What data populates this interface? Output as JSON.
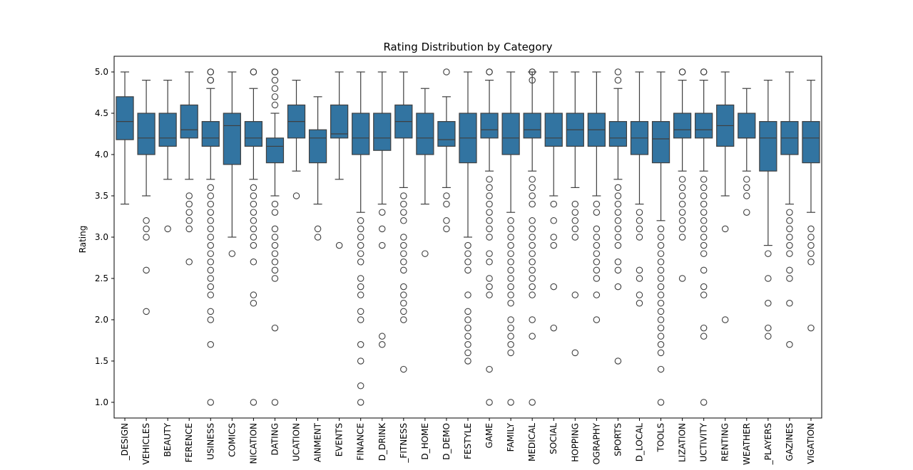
{
  "chart_data": {
    "type": "box",
    "title": "Rating Distribution by Category",
    "xlabel": "",
    "ylabel": "Rating",
    "ylim": [
      0.81,
      5.19
    ],
    "yticks": [
      "1.0",
      "1.5",
      "2.0",
      "2.5",
      "3.0",
      "3.5",
      "4.0",
      "4.5",
      "5.0"
    ],
    "box_color": "#3274a1",
    "line_color": "#3f3f3f",
    "grid": false,
    "categories": [
      "_DESIGN",
      "VEHICLES",
      "BEAUTY",
      "FERENCE",
      "USINESS",
      "COMICS",
      "NICATION",
      "DATING",
      "UCATION",
      "AINMENT",
      "EVENTS",
      "FINANCE",
      "D_DRINK",
      "_FITNESS",
      "D_HOME",
      "D_DEMO",
      "FESTYLE",
      "GAME",
      "FAMILY",
      "MEDICAL",
      "SOCIAL",
      "HOPPING",
      "OGRAPHY",
      "SPORTS",
      "D_LOCAL",
      "TOOLS",
      "LIZATION",
      "UCTIVITY",
      "RENTING",
      "WEATHER",
      "_PLAYERS",
      "GAZINES",
      "VIGATION"
    ],
    "boxes": [
      {
        "whislo": 3.4,
        "q1": 4.18,
        "med": 4.4,
        "q3": 4.7,
        "whishi": 5.0,
        "fliers": []
      },
      {
        "whislo": 3.5,
        "q1": 4.0,
        "med": 4.2,
        "q3": 4.5,
        "whishi": 4.9,
        "fliers": [
          3.2,
          3.1,
          3.0,
          2.6,
          2.1
        ]
      },
      {
        "whislo": 3.7,
        "q1": 4.1,
        "med": 4.2,
        "q3": 4.5,
        "whishi": 4.9,
        "fliers": [
          3.1
        ]
      },
      {
        "whislo": 3.7,
        "q1": 4.2,
        "med": 4.3,
        "q3": 4.6,
        "whishi": 5.0,
        "fliers": [
          3.5,
          3.4,
          3.3,
          3.2,
          3.1,
          2.7
        ]
      },
      {
        "whislo": 3.7,
        "q1": 4.1,
        "med": 4.2,
        "q3": 4.4,
        "whishi": 4.8,
        "fliers": [
          5.0,
          5.0,
          4.9,
          4.9,
          3.6,
          3.5,
          3.4,
          3.3,
          3.2,
          3.1,
          3.0,
          2.9,
          2.8,
          2.7,
          2.6,
          2.5,
          2.4,
          2.3,
          2.1,
          2.0,
          1.7,
          1.0
        ]
      },
      {
        "whislo": 3.0,
        "q1": 3.88,
        "med": 4.35,
        "q3": 4.5,
        "whishi": 5.0,
        "fliers": [
          2.8
        ]
      },
      {
        "whislo": 3.7,
        "q1": 4.1,
        "med": 4.2,
        "q3": 4.4,
        "whishi": 4.8,
        "fliers": [
          5.0,
          5.0,
          3.6,
          3.5,
          3.4,
          3.3,
          3.2,
          3.1,
          3.0,
          2.9,
          2.7,
          2.3,
          2.2,
          1.0
        ]
      },
      {
        "whislo": 3.5,
        "q1": 3.9,
        "med": 4.1,
        "q3": 4.2,
        "whishi": 4.5,
        "fliers": [
          5.0,
          5.0,
          4.9,
          4.8,
          4.7,
          4.6,
          3.4,
          3.3,
          3.1,
          3.0,
          2.9,
          2.8,
          2.7,
          2.6,
          2.5,
          1.9,
          1.0
        ]
      },
      {
        "whislo": 3.8,
        "q1": 4.2,
        "med": 4.4,
        "q3": 4.6,
        "whishi": 4.9,
        "fliers": [
          3.5
        ]
      },
      {
        "whislo": 3.4,
        "q1": 3.9,
        "med": 4.2,
        "q3": 4.3,
        "whishi": 4.7,
        "fliers": [
          3.1,
          3.0
        ]
      },
      {
        "whislo": 3.7,
        "q1": 4.2,
        "med": 4.25,
        "q3": 4.6,
        "whishi": 5.0,
        "fliers": [
          2.9
        ]
      },
      {
        "whislo": 3.3,
        "q1": 4.0,
        "med": 4.2,
        "q3": 4.5,
        "whishi": 5.0,
        "fliers": [
          3.2,
          3.1,
          3.0,
          2.9,
          2.8,
          2.7,
          2.5,
          2.4,
          2.3,
          2.1,
          2.0,
          1.7,
          1.5,
          1.2,
          1.0
        ]
      },
      {
        "whislo": 3.4,
        "q1": 4.05,
        "med": 4.2,
        "q3": 4.5,
        "whishi": 5.0,
        "fliers": [
          3.3,
          3.1,
          2.9,
          1.8,
          1.7
        ]
      },
      {
        "whislo": 3.6,
        "q1": 4.2,
        "med": 4.4,
        "q3": 4.6,
        "whishi": 5.0,
        "fliers": [
          3.5,
          3.4,
          3.3,
          3.2,
          3.0,
          2.9,
          2.8,
          2.7,
          2.6,
          2.4,
          2.3,
          2.2,
          2.1,
          2.0,
          1.4
        ]
      },
      {
        "whislo": 3.4,
        "q1": 4.0,
        "med": 4.2,
        "q3": 4.5,
        "whishi": 4.8,
        "fliers": [
          2.8
        ]
      },
      {
        "whislo": 3.6,
        "q1": 4.1,
        "med": 4.18,
        "q3": 4.4,
        "whishi": 4.7,
        "fliers": [
          5.0,
          3.5,
          3.4,
          3.2,
          3.1
        ]
      },
      {
        "whislo": 3.0,
        "q1": 3.9,
        "med": 4.2,
        "q3": 4.5,
        "whishi": 5.0,
        "fliers": [
          2.9,
          2.8,
          2.7,
          2.6,
          2.3,
          2.1,
          2.0,
          1.9,
          1.8,
          1.7,
          1.6,
          1.5
        ]
      },
      {
        "whislo": 3.8,
        "q1": 4.2,
        "med": 4.3,
        "q3": 4.5,
        "whishi": 4.9,
        "fliers": [
          5.0,
          5.0,
          3.7,
          3.6,
          3.5,
          3.4,
          3.3,
          3.2,
          3.1,
          3.0,
          2.8,
          2.7,
          2.5,
          2.4,
          2.3,
          1.4,
          1.0
        ]
      },
      {
        "whislo": 3.3,
        "q1": 4.0,
        "med": 4.2,
        "q3": 4.5,
        "whishi": 5.0,
        "fliers": [
          3.2,
          3.1,
          3.0,
          2.9,
          2.8,
          2.7,
          2.6,
          2.5,
          2.4,
          2.3,
          2.2,
          2.0,
          1.9,
          1.8,
          1.7,
          1.6,
          1.0
        ]
      },
      {
        "whislo": 3.8,
        "q1": 4.2,
        "med": 4.3,
        "q3": 4.5,
        "whishi": 5.0,
        "fliers": [
          5.0,
          5.0,
          4.9,
          3.7,
          3.6,
          3.5,
          3.4,
          3.2,
          3.1,
          3.0,
          2.9,
          2.8,
          2.7,
          2.6,
          2.5,
          2.4,
          2.3,
          2.0,
          1.8,
          1.0
        ]
      },
      {
        "whislo": 3.5,
        "q1": 4.1,
        "med": 4.2,
        "q3": 4.5,
        "whishi": 5.0,
        "fliers": [
          3.4,
          3.2,
          3.0,
          2.9,
          2.4,
          1.9
        ]
      },
      {
        "whislo": 3.6,
        "q1": 4.1,
        "med": 4.3,
        "q3": 4.5,
        "whishi": 5.0,
        "fliers": [
          3.4,
          3.3,
          3.2,
          3.1,
          3.0,
          2.3,
          1.6
        ]
      },
      {
        "whislo": 3.5,
        "q1": 4.1,
        "med": 4.3,
        "q3": 4.5,
        "whishi": 5.0,
        "fliers": [
          3.4,
          3.3,
          3.1,
          3.0,
          2.9,
          2.8,
          2.7,
          2.6,
          2.5,
          2.3,
          2.0
        ]
      },
      {
        "whislo": 3.7,
        "q1": 4.1,
        "med": 4.2,
        "q3": 4.4,
        "whishi": 4.8,
        "fliers": [
          5.0,
          4.9,
          3.6,
          3.5,
          3.4,
          3.3,
          3.2,
          3.1,
          3.0,
          2.9,
          2.7,
          2.6,
          2.4,
          1.5
        ]
      },
      {
        "whislo": 3.4,
        "q1": 4.0,
        "med": 4.2,
        "q3": 4.4,
        "whishi": 5.0,
        "fliers": [
          3.3,
          3.2,
          3.1,
          3.0,
          2.6,
          2.5,
          2.3,
          2.2
        ]
      },
      {
        "whislo": 3.2,
        "q1": 3.9,
        "med": 4.19,
        "q3": 4.4,
        "whishi": 5.0,
        "fliers": [
          3.1,
          3.0,
          2.9,
          2.8,
          2.7,
          2.6,
          2.5,
          2.4,
          2.3,
          2.2,
          2.1,
          2.0,
          1.9,
          1.8,
          1.7,
          1.6,
          1.4,
          1.0
        ]
      },
      {
        "whislo": 3.8,
        "q1": 4.2,
        "med": 4.3,
        "q3": 4.5,
        "whishi": 4.9,
        "fliers": [
          5.0,
          5.0,
          3.7,
          3.6,
          3.5,
          3.4,
          3.3,
          3.2,
          3.1,
          3.0,
          2.5
        ]
      },
      {
        "whislo": 3.8,
        "q1": 4.2,
        "med": 4.3,
        "q3": 4.5,
        "whishi": 4.9,
        "fliers": [
          5.0,
          5.0,
          3.7,
          3.6,
          3.5,
          3.4,
          3.3,
          3.2,
          3.1,
          3.0,
          2.9,
          2.8,
          2.6,
          2.4,
          2.3,
          1.9,
          1.8,
          1.0
        ]
      },
      {
        "whislo": 3.5,
        "q1": 4.1,
        "med": 4.35,
        "q3": 4.6,
        "whishi": 5.0,
        "fliers": [
          3.1,
          2.0
        ]
      },
      {
        "whislo": 3.8,
        "q1": 4.2,
        "med": 4.2,
        "q3": 4.5,
        "whishi": 4.8,
        "fliers": [
          3.7,
          3.6,
          3.5,
          3.3
        ]
      },
      {
        "whislo": 2.9,
        "q1": 3.8,
        "med": 4.2,
        "q3": 4.4,
        "whishi": 4.9,
        "fliers": [
          2.8,
          2.5,
          2.2,
          1.9,
          1.8
        ]
      },
      {
        "whislo": 3.4,
        "q1": 4.0,
        "med": 4.2,
        "q3": 4.4,
        "whishi": 5.0,
        "fliers": [
          3.3,
          3.2,
          3.1,
          3.0,
          2.9,
          2.8,
          2.6,
          2.5,
          2.2,
          1.7
        ]
      },
      {
        "whislo": 3.3,
        "q1": 3.9,
        "med": 4.2,
        "q3": 4.4,
        "whishi": 4.9,
        "fliers": [
          3.1,
          3.0,
          2.9,
          2.8,
          2.7,
          1.9
        ]
      }
    ]
  }
}
